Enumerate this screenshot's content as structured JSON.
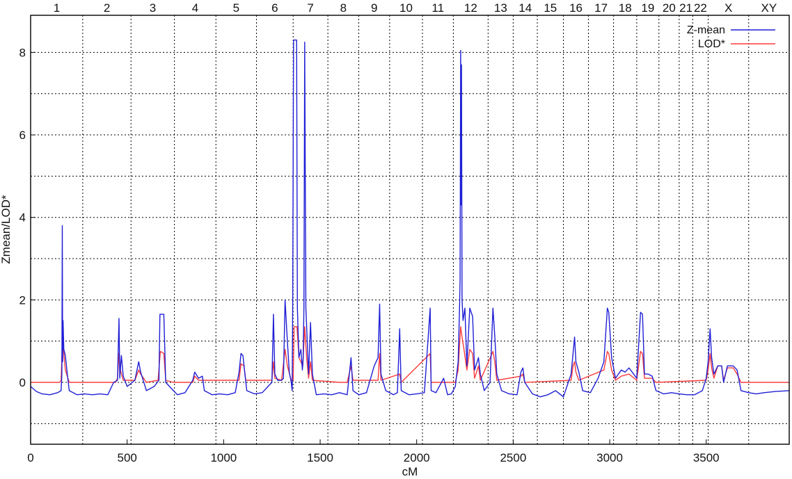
{
  "chart_data": {
    "type": "line",
    "xlabel": "cM",
    "ylabel": "Zmean/LOD*",
    "xlim": [
      0,
      3930
    ],
    "ylim": [
      -1.5,
      8.9
    ],
    "x_ticks": [
      0,
      500,
      1000,
      1500,
      2000,
      2500,
      3000,
      3500
    ],
    "y_ticks": [
      0,
      2,
      4,
      6,
      8
    ],
    "grid": true,
    "legend_position": "top-right",
    "chromosomes": [
      {
        "label": "1",
        "start": 0,
        "end": 270
      },
      {
        "label": "2",
        "start": 270,
        "end": 520
      },
      {
        "label": "3",
        "start": 520,
        "end": 745
      },
      {
        "label": "4",
        "start": 745,
        "end": 960
      },
      {
        "label": "5",
        "start": 960,
        "end": 1170
      },
      {
        "label": "6",
        "start": 1170,
        "end": 1360
      },
      {
        "label": "7",
        "start": 1360,
        "end": 1540
      },
      {
        "label": "8",
        "start": 1540,
        "end": 1700
      },
      {
        "label": "9",
        "start": 1700,
        "end": 1860
      },
      {
        "label": "10",
        "start": 1860,
        "end": 2030
      },
      {
        "label": "11",
        "start": 2030,
        "end": 2190
      },
      {
        "label": "12",
        "start": 2190,
        "end": 2370
      },
      {
        "label": "13",
        "start": 2370,
        "end": 2500
      },
      {
        "label": "14",
        "start": 2500,
        "end": 2625
      },
      {
        "label": "15",
        "start": 2625,
        "end": 2760
      },
      {
        "label": "16",
        "start": 2760,
        "end": 2890
      },
      {
        "label": "17",
        "start": 2890,
        "end": 3020
      },
      {
        "label": "18",
        "start": 3020,
        "end": 3140
      },
      {
        "label": "19",
        "start": 3140,
        "end": 3255
      },
      {
        "label": "20",
        "start": 3255,
        "end": 3360
      },
      {
        "label": "21",
        "start": 3360,
        "end": 3430
      },
      {
        "label": "22",
        "start": 3430,
        "end": 3510
      },
      {
        "label": "X",
        "start": 3510,
        "end": 3720
      },
      {
        "label": "XY",
        "start": 3720,
        "end": 3930
      }
    ],
    "series": [
      {
        "name": "Z-mean",
        "color": "#1f1fd6",
        "points": [
          [
            0,
            -0.1
          ],
          [
            30,
            -0.22
          ],
          [
            60,
            -0.28
          ],
          [
            100,
            -0.3
          ],
          [
            140,
            -0.25
          ],
          [
            158,
            -0.2
          ],
          [
            162,
            0.2
          ],
          [
            164,
            3.8
          ],
          [
            166,
            0.5
          ],
          [
            168,
            1.5
          ],
          [
            172,
            0.8
          ],
          [
            180,
            0.65
          ],
          [
            190,
            0.2
          ],
          [
            200,
            -0.2
          ],
          [
            240,
            -0.3
          ],
          [
            280,
            -0.28
          ],
          [
            320,
            -0.3
          ],
          [
            360,
            -0.28
          ],
          [
            400,
            -0.3
          ],
          [
            430,
            0.0
          ],
          [
            450,
            0.05
          ],
          [
            458,
            1.55
          ],
          [
            462,
            0.1
          ],
          [
            470,
            0.65
          ],
          [
            480,
            0.15
          ],
          [
            500,
            -0.1
          ],
          [
            540,
            0.05
          ],
          [
            560,
            0.5
          ],
          [
            570,
            0.25
          ],
          [
            600,
            -0.2
          ],
          [
            640,
            -0.1
          ],
          [
            665,
            0.05
          ],
          [
            670,
            1.65
          ],
          [
            690,
            1.65
          ],
          [
            700,
            0.0
          ],
          [
            740,
            -0.2
          ],
          [
            760,
            -0.3
          ],
          [
            800,
            -0.25
          ],
          [
            840,
            0.05
          ],
          [
            850,
            0.25
          ],
          [
            870,
            0.1
          ],
          [
            890,
            0.15
          ],
          [
            900,
            -0.2
          ],
          [
            940,
            -0.3
          ],
          [
            980,
            -0.28
          ],
          [
            1020,
            -0.3
          ],
          [
            1060,
            -0.25
          ],
          [
            1080,
            0.25
          ],
          [
            1090,
            0.7
          ],
          [
            1100,
            0.65
          ],
          [
            1110,
            0.2
          ],
          [
            1120,
            -0.2
          ],
          [
            1160,
            -0.28
          ],
          [
            1200,
            -0.25
          ],
          [
            1230,
            -0.1
          ],
          [
            1250,
            0.0
          ],
          [
            1258,
            1.65
          ],
          [
            1265,
            0.2
          ],
          [
            1280,
            0.05
          ],
          [
            1300,
            0.05
          ],
          [
            1310,
            0.1
          ],
          [
            1318,
            2.0
          ],
          [
            1330,
            1.0
          ],
          [
            1340,
            0.25
          ],
          [
            1350,
            0.0
          ],
          [
            1355,
            -0.2
          ],
          [
            1358,
            2.0
          ],
          [
            1362,
            8.3
          ],
          [
            1378,
            8.3
          ],
          [
            1382,
            1.8
          ],
          [
            1390,
            0.6
          ],
          [
            1400,
            0.8
          ],
          [
            1408,
            0.3
          ],
          [
            1412,
            0.6
          ],
          [
            1416,
            1.8
          ],
          [
            1420,
            8.25
          ],
          [
            1426,
            1.8
          ],
          [
            1440,
            0.2
          ],
          [
            1450,
            1.45
          ],
          [
            1460,
            0.2
          ],
          [
            1480,
            -0.3
          ],
          [
            1520,
            -0.28
          ],
          [
            1560,
            -0.3
          ],
          [
            1600,
            -0.25
          ],
          [
            1640,
            -0.3
          ],
          [
            1660,
            0.6
          ],
          [
            1670,
            -0.2
          ],
          [
            1700,
            -0.3
          ],
          [
            1740,
            -0.25
          ],
          [
            1780,
            0.4
          ],
          [
            1800,
            0.6
          ],
          [
            1808,
            1.9
          ],
          [
            1815,
            0.2
          ],
          [
            1840,
            -0.2
          ],
          [
            1880,
            -0.3
          ],
          [
            1900,
            -0.25
          ],
          [
            1912,
            1.3
          ],
          [
            1920,
            -0.2
          ],
          [
            1960,
            -0.3
          ],
          [
            2000,
            -0.28
          ],
          [
            2040,
            -0.25
          ],
          [
            2070,
            1.8
          ],
          [
            2075,
            -0.2
          ],
          [
            2100,
            -0.25
          ],
          [
            2140,
            0.1
          ],
          [
            2160,
            -0.3
          ],
          [
            2180,
            -0.28
          ],
          [
            2200,
            -0.1
          ],
          [
            2215,
            0.5
          ],
          [
            2222,
            1.8
          ],
          [
            2225,
            2.5
          ],
          [
            2228,
            8.05
          ],
          [
            2230,
            4.3
          ],
          [
            2232,
            7.7
          ],
          [
            2235,
            2.0
          ],
          [
            2240,
            1.5
          ],
          [
            2250,
            1.8
          ],
          [
            2260,
            0.4
          ],
          [
            2275,
            1.8
          ],
          [
            2290,
            1.6
          ],
          [
            2300,
            0.3
          ],
          [
            2320,
            0.6
          ],
          [
            2330,
            0.2
          ],
          [
            2350,
            -0.2
          ],
          [
            2380,
            0.0
          ],
          [
            2395,
            1.8
          ],
          [
            2405,
            1.1
          ],
          [
            2415,
            0.2
          ],
          [
            2440,
            -0.2
          ],
          [
            2480,
            -0.28
          ],
          [
            2520,
            -0.3
          ],
          [
            2540,
            0.25
          ],
          [
            2550,
            0.35
          ],
          [
            2560,
            0.0
          ],
          [
            2600,
            -0.28
          ],
          [
            2640,
            -0.35
          ],
          [
            2680,
            -0.3
          ],
          [
            2720,
            -0.2
          ],
          [
            2760,
            -0.35
          ],
          [
            2800,
            0.2
          ],
          [
            2810,
            0.7
          ],
          [
            2818,
            1.1
          ],
          [
            2825,
            0.5
          ],
          [
            2840,
            0.25
          ],
          [
            2860,
            -0.2
          ],
          [
            2900,
            -0.25
          ],
          [
            2940,
            0.1
          ],
          [
            2970,
            0.5
          ],
          [
            2988,
            1.8
          ],
          [
            2995,
            1.7
          ],
          [
            3010,
            0.6
          ],
          [
            3030,
            0.1
          ],
          [
            3060,
            0.3
          ],
          [
            3080,
            0.25
          ],
          [
            3100,
            0.35
          ],
          [
            3140,
            0.1
          ],
          [
            3160,
            1.7
          ],
          [
            3170,
            1.65
          ],
          [
            3180,
            0.2
          ],
          [
            3200,
            0.2
          ],
          [
            3220,
            0.15
          ],
          [
            3240,
            -0.2
          ],
          [
            3280,
            -0.28
          ],
          [
            3320,
            -0.25
          ],
          [
            3360,
            -0.28
          ],
          [
            3400,
            -0.3
          ],
          [
            3440,
            -0.3
          ],
          [
            3480,
            -0.2
          ],
          [
            3500,
            0.1
          ],
          [
            3510,
            0.5
          ],
          [
            3520,
            1.3
          ],
          [
            3528,
            0.6
          ],
          [
            3540,
            0.2
          ],
          [
            3560,
            0.4
          ],
          [
            3580,
            0.4
          ],
          [
            3590,
            0.0
          ],
          [
            3610,
            0.4
          ],
          [
            3640,
            0.4
          ],
          [
            3660,
            0.3
          ],
          [
            3680,
            -0.2
          ],
          [
            3720,
            -0.25
          ],
          [
            3760,
            -0.28
          ],
          [
            3800,
            -0.25
          ],
          [
            3860,
            -0.22
          ],
          [
            3930,
            -0.2
          ]
        ]
      },
      {
        "name": "LOD*",
        "color": "#ff3b3b",
        "points": [
          [
            0,
            0.0
          ],
          [
            150,
            0.0
          ],
          [
            158,
            0.05
          ],
          [
            162,
            0.6
          ],
          [
            166,
            1.0
          ],
          [
            170,
            0.8
          ],
          [
            180,
            0.3
          ],
          [
            200,
            0.0
          ],
          [
            440,
            0.0
          ],
          [
            450,
            0.1
          ],
          [
            458,
            0.7
          ],
          [
            465,
            0.3
          ],
          [
            480,
            0.05
          ],
          [
            540,
            0.05
          ],
          [
            560,
            0.3
          ],
          [
            570,
            0.2
          ],
          [
            600,
            0.0
          ],
          [
            660,
            0.05
          ],
          [
            672,
            0.75
          ],
          [
            690,
            0.7
          ],
          [
            700,
            0.05
          ],
          [
            740,
            0.0
          ],
          [
            840,
            0.0
          ],
          [
            850,
            0.15
          ],
          [
            870,
            0.05
          ],
          [
            1080,
            0.05
          ],
          [
            1090,
            0.45
          ],
          [
            1105,
            0.4
          ],
          [
            1115,
            0.05
          ],
          [
            1250,
            0.05
          ],
          [
            1258,
            0.5
          ],
          [
            1265,
            0.1
          ],
          [
            1300,
            0.05
          ],
          [
            1318,
            0.8
          ],
          [
            1330,
            0.4
          ],
          [
            1350,
            0.05
          ],
          [
            1360,
            0.05
          ],
          [
            1365,
            1.35
          ],
          [
            1380,
            1.35
          ],
          [
            1390,
            0.6
          ],
          [
            1410,
            0.4
          ],
          [
            1420,
            1.35
          ],
          [
            1430,
            0.6
          ],
          [
            1440,
            0.1
          ],
          [
            1450,
            0.5
          ],
          [
            1460,
            0.05
          ],
          [
            1600,
            0.0
          ],
          [
            1640,
            0.0
          ],
          [
            1660,
            0.4
          ],
          [
            1670,
            0.05
          ],
          [
            1800,
            0.05
          ],
          [
            1808,
            0.7
          ],
          [
            1815,
            0.05
          ],
          [
            1912,
            0.2
          ],
          [
            1920,
            0.0
          ],
          [
            2070,
            0.7
          ],
          [
            2075,
            0.0
          ],
          [
            2200,
            0.0
          ],
          [
            2215,
            0.3
          ],
          [
            2222,
            0.9
          ],
          [
            2228,
            1.35
          ],
          [
            2235,
            1.1
          ],
          [
            2245,
            0.8
          ],
          [
            2260,
            0.3
          ],
          [
            2275,
            0.8
          ],
          [
            2290,
            0.7
          ],
          [
            2300,
            0.1
          ],
          [
            2320,
            0.4
          ],
          [
            2330,
            0.05
          ],
          [
            2395,
            0.75
          ],
          [
            2405,
            0.5
          ],
          [
            2415,
            0.05
          ],
          [
            2540,
            0.15
          ],
          [
            2550,
            0.2
          ],
          [
            2560,
            0.0
          ],
          [
            2800,
            0.05
          ],
          [
            2810,
            0.4
          ],
          [
            2818,
            0.5
          ],
          [
            2825,
            0.25
          ],
          [
            2840,
            0.05
          ],
          [
            2970,
            0.3
          ],
          [
            2988,
            0.75
          ],
          [
            2995,
            0.7
          ],
          [
            3010,
            0.3
          ],
          [
            3030,
            0.05
          ],
          [
            3060,
            0.15
          ],
          [
            3100,
            0.2
          ],
          [
            3140,
            0.05
          ],
          [
            3160,
            0.75
          ],
          [
            3170,
            0.7
          ],
          [
            3180,
            0.1
          ],
          [
            3200,
            0.1
          ],
          [
            3220,
            0.1
          ],
          [
            3240,
            0.0
          ],
          [
            3500,
            0.05
          ],
          [
            3510,
            0.3
          ],
          [
            3520,
            0.7
          ],
          [
            3528,
            0.35
          ],
          [
            3540,
            0.1
          ],
          [
            3560,
            0.4
          ],
          [
            3580,
            0.4
          ],
          [
            3590,
            0.05
          ],
          [
            3610,
            0.35
          ],
          [
            3640,
            0.35
          ],
          [
            3660,
            0.2
          ],
          [
            3680,
            0.0
          ],
          [
            3930,
            0.0
          ]
        ]
      }
    ]
  }
}
